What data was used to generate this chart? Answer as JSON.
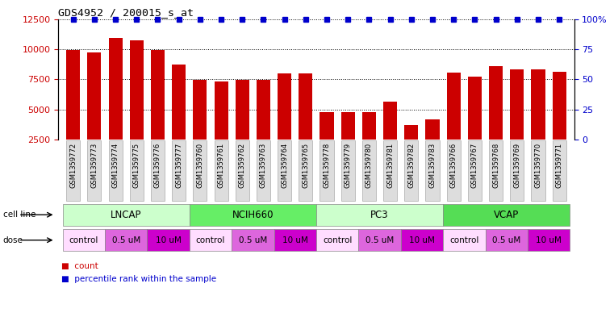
{
  "title": "GDS4952 / 200015_s_at",
  "samples": [
    "GSM1359772",
    "GSM1359773",
    "GSM1359774",
    "GSM1359775",
    "GSM1359776",
    "GSM1359777",
    "GSM1359760",
    "GSM1359761",
    "GSM1359762",
    "GSM1359763",
    "GSM1359764",
    "GSM1359765",
    "GSM1359778",
    "GSM1359779",
    "GSM1359780",
    "GSM1359781",
    "GSM1359782",
    "GSM1359783",
    "GSM1359766",
    "GSM1359767",
    "GSM1359768",
    "GSM1359769",
    "GSM1359770",
    "GSM1359771"
  ],
  "counts": [
    9900,
    9750,
    10900,
    10700,
    9950,
    8700,
    7450,
    7300,
    7450,
    7450,
    8000,
    8000,
    4800,
    4800,
    4750,
    5650,
    3700,
    4200,
    8050,
    7700,
    8600,
    8300,
    8350,
    8100
  ],
  "percentile_ranks": [
    100,
    100,
    100,
    100,
    100,
    100,
    100,
    100,
    100,
    100,
    100,
    100,
    100,
    100,
    100,
    100,
    100,
    100,
    100,
    100,
    100,
    100,
    100,
    100
  ],
  "cell_lines": [
    {
      "name": "LNCAP",
      "start": 0,
      "end": 6,
      "color": "#ccffcc"
    },
    {
      "name": "NCIH660",
      "start": 6,
      "end": 12,
      "color": "#66ee66"
    },
    {
      "name": "PC3",
      "start": 12,
      "end": 18,
      "color": "#ccffcc"
    },
    {
      "name": "VCAP",
      "start": 18,
      "end": 24,
      "color": "#55dd55"
    }
  ],
  "doses": [
    {
      "label": "control",
      "start": 0,
      "end": 2,
      "color": "#ffddff"
    },
    {
      "label": "0.5 uM",
      "start": 2,
      "end": 4,
      "color": "#dd66dd"
    },
    {
      "label": "10 uM",
      "start": 4,
      "end": 6,
      "color": "#cc00cc"
    },
    {
      "label": "control",
      "start": 6,
      "end": 8,
      "color": "#ffddff"
    },
    {
      "label": "0.5 uM",
      "start": 8,
      "end": 10,
      "color": "#dd66dd"
    },
    {
      "label": "10 uM",
      "start": 10,
      "end": 12,
      "color": "#cc00cc"
    },
    {
      "label": "control",
      "start": 12,
      "end": 14,
      "color": "#ffddff"
    },
    {
      "label": "0.5 uM",
      "start": 14,
      "end": 16,
      "color": "#dd66dd"
    },
    {
      "label": "10 uM",
      "start": 16,
      "end": 18,
      "color": "#cc00cc"
    },
    {
      "label": "control",
      "start": 18,
      "end": 20,
      "color": "#ffddff"
    },
    {
      "label": "0.5 uM",
      "start": 20,
      "end": 22,
      "color": "#dd66dd"
    },
    {
      "label": "10 uM",
      "start": 22,
      "end": 24,
      "color": "#cc00cc"
    }
  ],
  "bar_color": "#cc0000",
  "dot_color": "#0000cc",
  "ylim_left": [
    2500,
    12500
  ],
  "yticks_left": [
    2500,
    5000,
    7500,
    10000,
    12500
  ],
  "ylim_right": [
    0,
    100
  ],
  "yticks_right": [
    0,
    25,
    50,
    75,
    100
  ],
  "background_color": "#ffffff",
  "xtick_bg_color": "#dddddd",
  "grid_color": "#000000",
  "legend_bar_color": "#cc0000",
  "legend_dot_color": "#0000cc"
}
